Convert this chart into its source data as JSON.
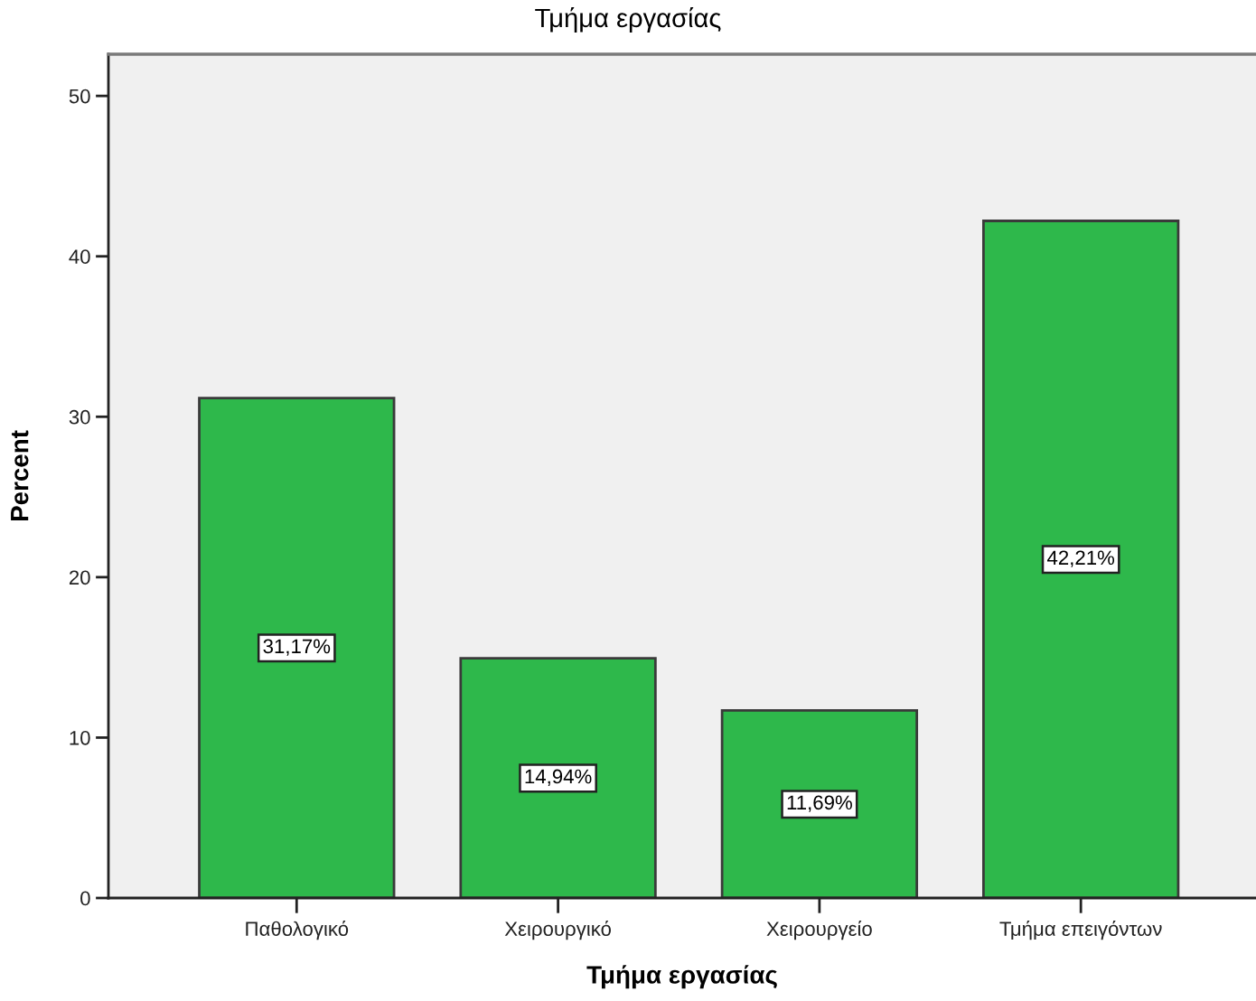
{
  "chart_data": {
    "type": "bar",
    "title": "Τμήμα εργασίας",
    "xlabel": "Τμήμα εργασίας",
    "ylabel": "Percent",
    "categories": [
      "Παθολογικό",
      "Χειρουργικό",
      "Χειρουργείο",
      "Τμήμα επειγόντων"
    ],
    "values": [
      31.17,
      14.94,
      11.69,
      42.21
    ],
    "value_labels": [
      "31,17%",
      "14,94%",
      "11,69%",
      "42,21%"
    ],
    "color": "#2eb84b",
    "ylim": [
      0,
      52.6
    ],
    "yticks": [
      0,
      10,
      20,
      30,
      40,
      50
    ],
    "grid": false
  }
}
